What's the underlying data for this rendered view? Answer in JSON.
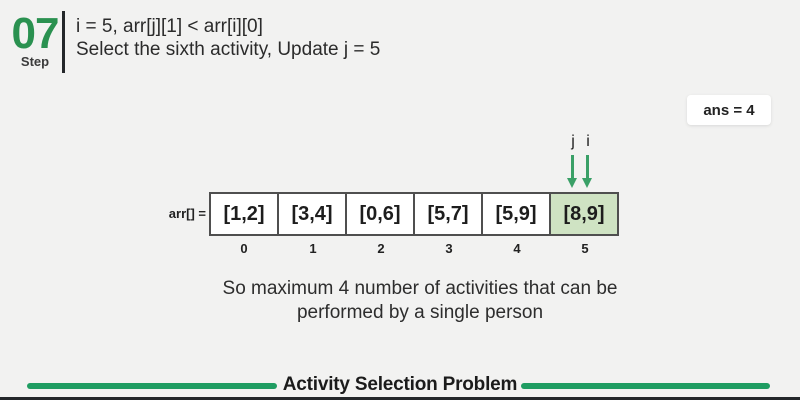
{
  "header": {
    "step_number": "07",
    "step_label": "Step",
    "line1": "i = 5, arr[j][1] < arr[i][0]",
    "line2": "Select the sixth activity, Update j = 5"
  },
  "ans_badge": "ans = 4",
  "pointers": {
    "j": "j",
    "i": "i"
  },
  "array": {
    "label": "arr[] =",
    "highlight_index": 5,
    "cells": [
      {
        "value": "[1,2]",
        "index": "0"
      },
      {
        "value": "[3,4]",
        "index": "1"
      },
      {
        "value": "[0,6]",
        "index": "2"
      },
      {
        "value": "[5,7]",
        "index": "3"
      },
      {
        "value": "[5,9]",
        "index": "4"
      },
      {
        "value": "[8,9]",
        "index": "5"
      }
    ]
  },
  "conclusion": {
    "line1": "So maximum 4 number of activities that can be",
    "line2": "performed by a single person"
  },
  "footer": {
    "title": "Activity Selection Problem"
  },
  "colors": {
    "accent_green": "#2a9150",
    "rule_green": "#1f9d62",
    "arrow_green": "#3aa067",
    "highlight_green": "#cfe3c3",
    "background": "#f2f2f1",
    "text_dark": "#2b2b2b",
    "cell_border": "#4f4f4f"
  }
}
